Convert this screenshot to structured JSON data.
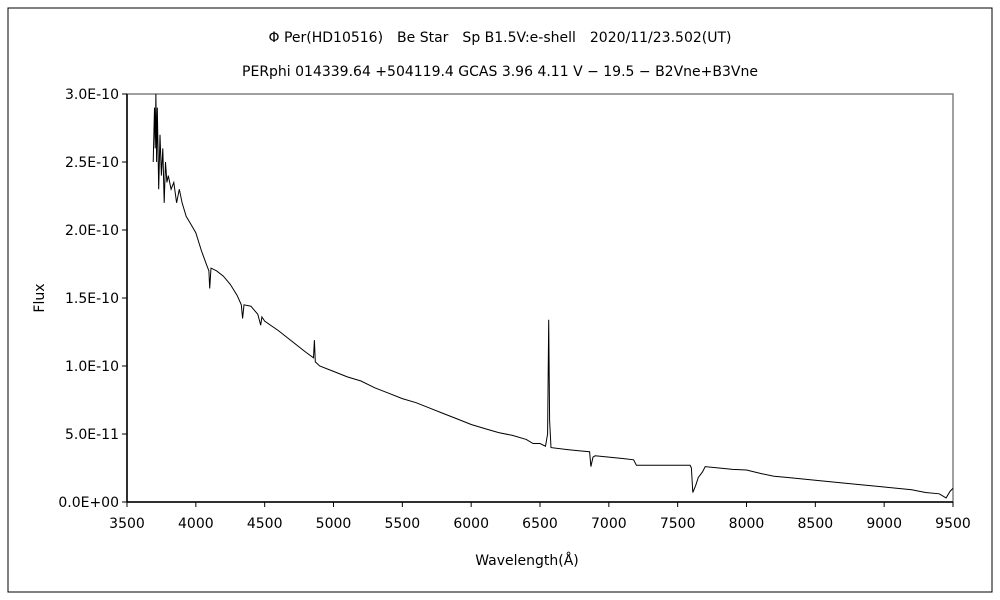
{
  "chart_data": {
    "type": "line",
    "title": "Φ Per(HD10516)　Be Star　Sp B1.5V:e-shell　2020/11/23.502(UT)",
    "subtitle": "PERphi 014339.64 +504119.4 GCAS 3.96 4.11 V − 19.5 − B2Vne+B3Vne",
    "xlabel": "Wavelength(Å)",
    "ylabel": "Flux",
    "xlim": [
      3500,
      9500
    ],
    "ylim": [
      0,
      3e-10
    ],
    "grid": false,
    "legend": "none",
    "x_ticks": [
      "3500",
      "4000",
      "4500",
      "5000",
      "5500",
      "6000",
      "6500",
      "7000",
      "7500",
      "8000",
      "8500",
      "9000",
      "9500"
    ],
    "y_ticks": [
      "0.0E+00",
      "5.0E-11",
      "1.0E-10",
      "1.5E-10",
      "2.0E-10",
      "2.5E-10",
      "3.0E-10"
    ],
    "series": [
      {
        "name": "Flux",
        "unit_scale": 1e-10,
        "x": [
          3690,
          3700,
          3705,
          3710,
          3715,
          3720,
          3730,
          3740,
          3750,
          3760,
          3770,
          3780,
          3790,
          3800,
          3820,
          3840,
          3860,
          3880,
          3900,
          3930,
          3960,
          4000,
          4040,
          4080,
          4095,
          4101,
          4110,
          4150,
          4200,
          4250,
          4300,
          4330,
          4340,
          4350,
          4400,
          4450,
          4471,
          4480,
          4500,
          4600,
          4700,
          4800,
          4855,
          4861,
          4868,
          4900,
          5000,
          5100,
          5200,
          5300,
          5400,
          5500,
          5600,
          5700,
          5800,
          5900,
          6000,
          6100,
          6200,
          6300,
          6400,
          6450,
          6500,
          6540,
          6555,
          6563,
          6570,
          6580,
          6700,
          6800,
          6860,
          6870,
          6885,
          6900,
          7000,
          7100,
          7180,
          7200,
          7300,
          7400,
          7500,
          7590,
          7600,
          7610,
          7630,
          7650,
          7680,
          7700,
          7800,
          7900,
          8000,
          8100,
          8200,
          8300,
          8400,
          8500,
          8700,
          9000,
          9200,
          9300,
          9400,
          9450,
          9480,
          9500
        ],
        "y": [
          2.5,
          2.9,
          2.6,
          3.0,
          2.5,
          2.9,
          2.3,
          2.7,
          2.4,
          2.6,
          2.2,
          2.5,
          2.35,
          2.4,
          2.3,
          2.35,
          2.2,
          2.3,
          2.2,
          2.1,
          2.05,
          1.98,
          1.85,
          1.74,
          1.7,
          1.57,
          1.72,
          1.7,
          1.66,
          1.6,
          1.52,
          1.45,
          1.35,
          1.45,
          1.44,
          1.38,
          1.3,
          1.36,
          1.33,
          1.26,
          1.18,
          1.1,
          1.06,
          1.19,
          1.03,
          1.0,
          0.96,
          0.92,
          0.89,
          0.84,
          0.8,
          0.76,
          0.73,
          0.69,
          0.65,
          0.61,
          0.57,
          0.54,
          0.51,
          0.49,
          0.46,
          0.43,
          0.43,
          0.41,
          0.5,
          1.34,
          0.6,
          0.4,
          0.385,
          0.375,
          0.37,
          0.26,
          0.33,
          0.34,
          0.33,
          0.32,
          0.31,
          0.27,
          0.27,
          0.27,
          0.27,
          0.27,
          0.25,
          0.07,
          0.12,
          0.18,
          0.22,
          0.26,
          0.25,
          0.24,
          0.235,
          0.21,
          0.19,
          0.18,
          0.17,
          0.16,
          0.14,
          0.11,
          0.09,
          0.07,
          0.06,
          0.03,
          0.08,
          0.1
        ]
      }
    ]
  }
}
